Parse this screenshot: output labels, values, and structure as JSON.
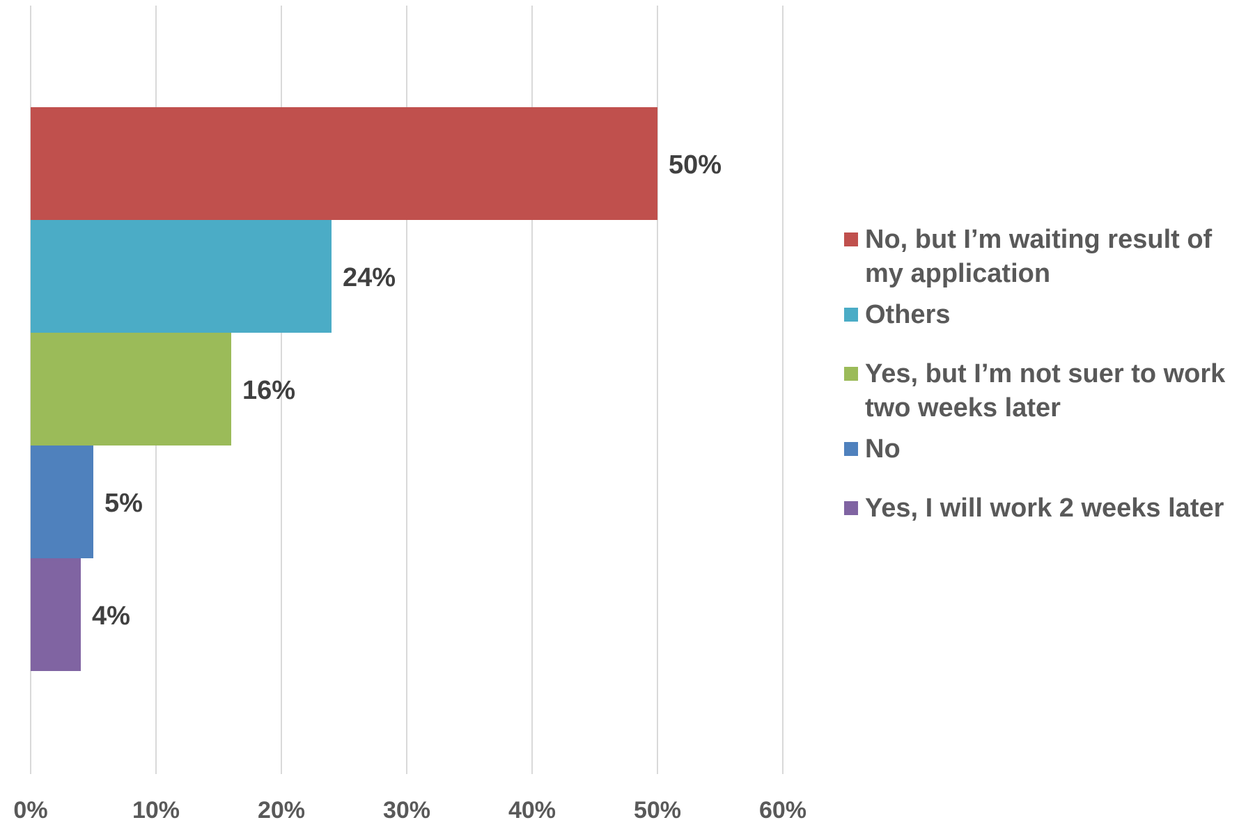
{
  "chart_data": {
    "type": "bar",
    "orientation": "horizontal",
    "categories": [
      "No, but  I’m waiting result of my application",
      "Others",
      "Yes, but I’m not suer to work two weeks later",
      "No",
      "Yes, I will work 2 weeks later"
    ],
    "values": [
      50,
      24,
      16,
      5,
      4
    ],
    "data_labels": [
      "50%",
      "24%",
      "16%",
      "5%",
      "4%"
    ],
    "colors": [
      "#C0504D",
      "#4BACC6",
      "#9BBB59",
      "#4F81BD",
      "#8064A2"
    ],
    "x_ticks": [
      "0%",
      "10%",
      "20%",
      "30%",
      "40%",
      "50%",
      "60%"
    ],
    "xlim": [
      0,
      60
    ],
    "grid": "vertical",
    "legend_position": "right",
    "title": "",
    "xlabel": "",
    "ylabel": ""
  }
}
